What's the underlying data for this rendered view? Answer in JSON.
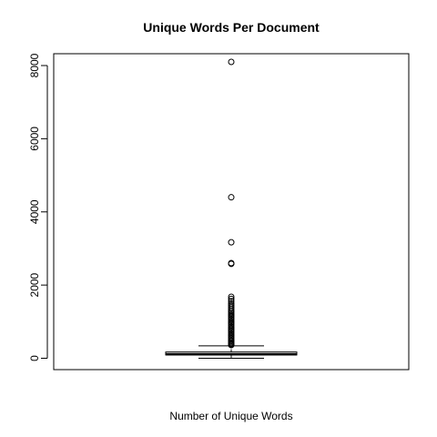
{
  "chart_data": {
    "type": "boxplot",
    "title": "Unique Words Per Document",
    "xlabel": "Number of Unique Words",
    "ylabel": "",
    "ylim": [
      -300,
      8350
    ],
    "yticks": [
      0,
      2000,
      4000,
      6000,
      8000
    ],
    "ytick_labels": [
      "0",
      "2000",
      "4000",
      "6000",
      "8000"
    ],
    "grid": false,
    "box": {
      "min": 0,
      "q1": 90,
      "median": 110,
      "q3": 170,
      "whisker_high": 340
    },
    "outliers": [
      8100,
      4400,
      3170,
      2600,
      2580,
      1680,
      1620,
      1560,
      1500,
      1450,
      1400,
      1350,
      1300,
      1260,
      1220,
      1180,
      1140,
      1100,
      1060,
      1020,
      980,
      940,
      900,
      860,
      820,
      780,
      740,
      700,
      660,
      620,
      580,
      540,
      500,
      470,
      440,
      410,
      380,
      360
    ]
  }
}
